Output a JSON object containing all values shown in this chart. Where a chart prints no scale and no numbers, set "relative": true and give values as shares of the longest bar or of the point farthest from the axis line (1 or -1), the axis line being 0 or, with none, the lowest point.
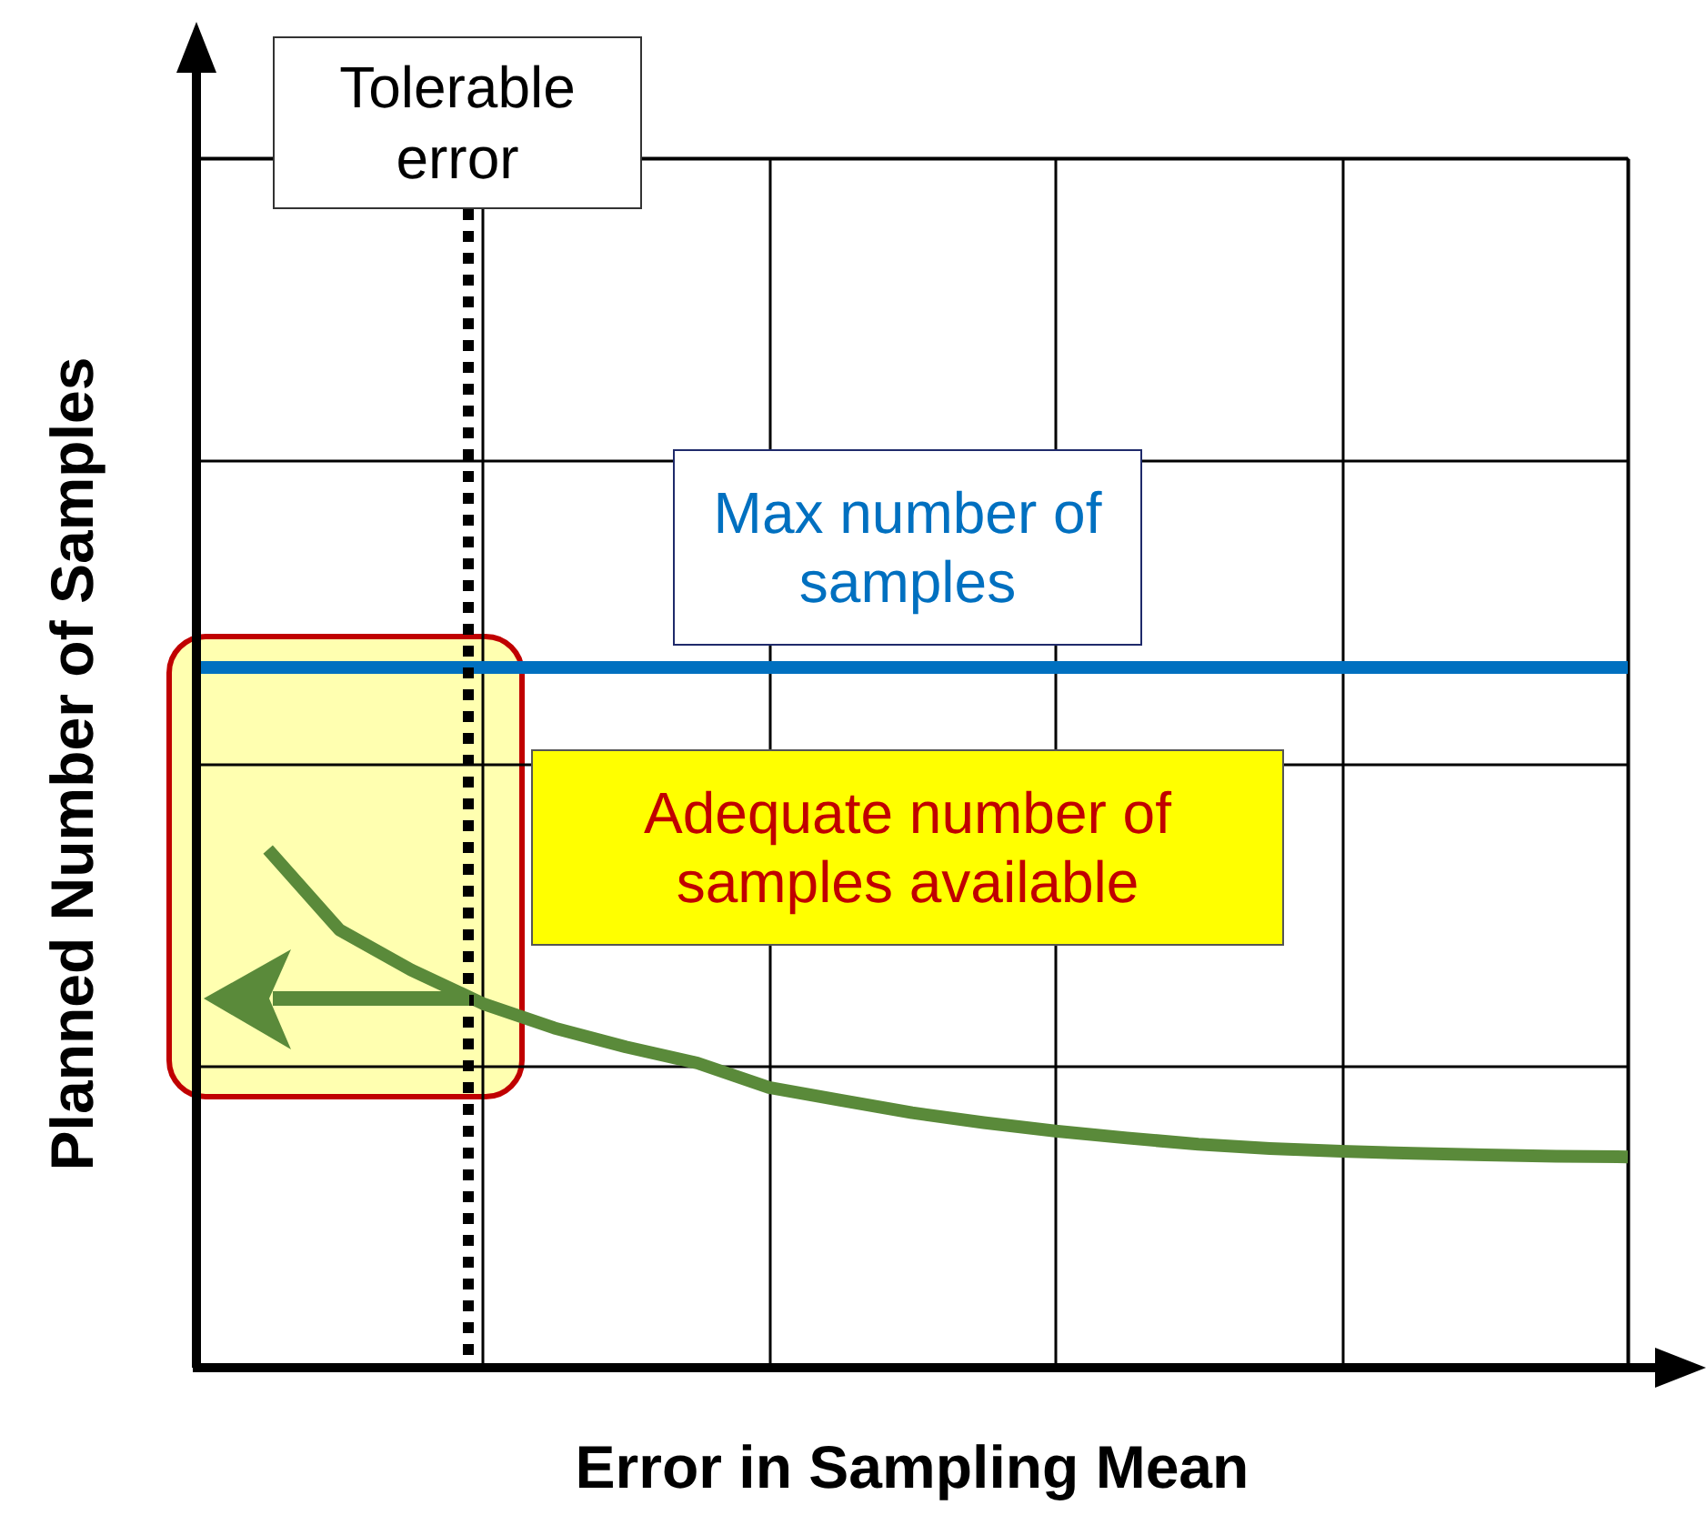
{
  "chart_data": {
    "type": "line",
    "relative": true,
    "grid": true,
    "marker": "none",
    "line_style": "solid",
    "xlabel": "Error in Sampling Mean",
    "ylabel": "Planned Number of Samples",
    "categories": [
      null,
      null,
      null,
      null,
      null,
      null,
      null,
      null,
      null,
      null,
      null,
      null,
      null,
      null,
      null,
      null,
      null,
      null,
      null,
      null,
      null
    ],
    "series": [
      {
        "color": "#0070c0",
        "values": [
          1,
          1,
          1,
          1,
          1,
          1,
          1,
          1,
          1,
          1,
          1,
          1,
          1,
          1,
          1,
          1,
          1,
          1,
          1,
          1,
          1
        ]
      },
      {
        "color": "#5a8a3a",
        "values": [
          null,
          0.74,
          0.625,
          0.568,
          0.52,
          0.485,
          0.458,
          0.435,
          0.4,
          0.382,
          0.364,
          0.35,
          0.338,
          0.328,
          0.319,
          0.313,
          0.309,
          0.306,
          0.304,
          0.302,
          0.301
        ]
      }
    ],
    "annotations": [
      "Tolerable error",
      "Max number of samples",
      "Adequate number of samples available"
    ]
  }
}
